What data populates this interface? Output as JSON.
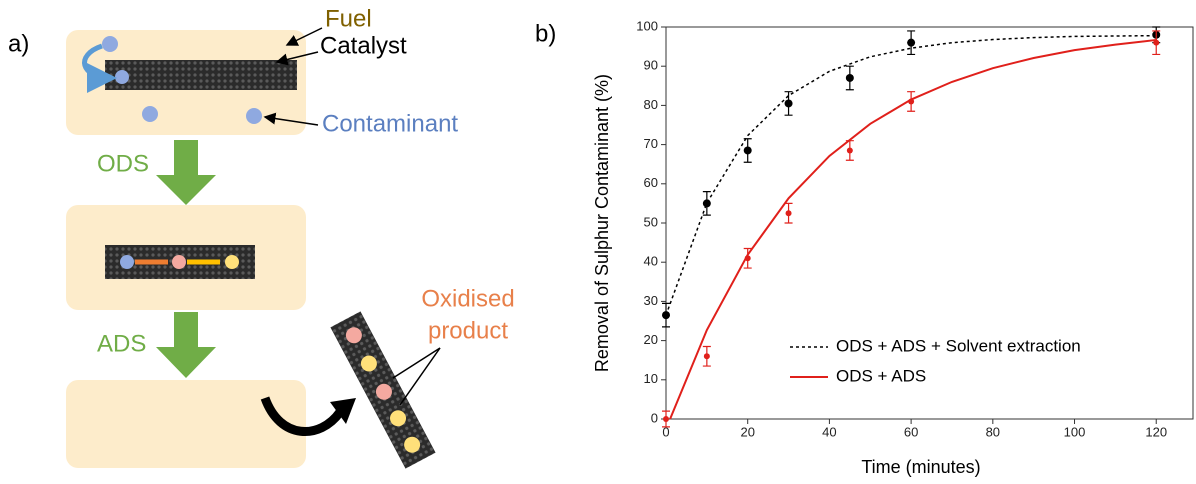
{
  "diagram": {
    "panel_label": "a)",
    "fuel": "Fuel",
    "catalyst": "Catalyst",
    "contaminant": "Contaminant",
    "step1": "ODS",
    "step2": "ADS",
    "product_line1": "Oxidised",
    "product_line2": "product"
  },
  "chart_data": {
    "type": "scatter",
    "panel_label": "b)",
    "x_label": "Time (minutes)",
    "y_label": "Removal of Sulphur Contaminant (%)",
    "xlim": [
      0,
      129
    ],
    "ylim": [
      0,
      100
    ],
    "xticks": [
      0,
      20,
      40,
      60,
      80,
      100,
      120
    ],
    "yticks": [
      0,
      10,
      20,
      30,
      40,
      50,
      60,
      70,
      80,
      90,
      100
    ],
    "legend": "lower right",
    "series": [
      {
        "name": "ODS + ADS + Solvent extraction",
        "color": "#000000",
        "line_style": "dotted",
        "x": [
          0,
          10,
          20,
          30,
          45,
          60,
          120
        ],
        "values": [
          26.5,
          55,
          68.5,
          80.5,
          87,
          96,
          98
        ],
        "errors": [
          3,
          3,
          3,
          3,
          3,
          3,
          2
        ],
        "fit_x": [
          0,
          10,
          20,
          30,
          40,
          50,
          60,
          70,
          80,
          90,
          100,
          110,
          120
        ],
        "fit_values": [
          26.5,
          55.1,
          72.3,
          82.5,
          88.7,
          92.4,
          94.6,
          96.0,
          96.8,
          97.3,
          97.6,
          97.7,
          97.8
        ]
      },
      {
        "name": "ODS + ADS",
        "color": "#e0201b",
        "line_style": "solid",
        "x": [
          0,
          10,
          20,
          30,
          45,
          60,
          120
        ],
        "values": [
          0,
          16,
          41,
          52.5,
          68.5,
          81,
          96
        ],
        "errors": [
          2,
          2.5,
          2.5,
          2.5,
          2.5,
          2.5,
          3
        ],
        "fit_x": [
          1,
          10,
          20,
          30,
          40,
          50,
          60,
          70,
          80,
          90,
          100,
          110,
          120
        ],
        "fit_values": [
          0,
          22.7,
          41.9,
          56.3,
          67.1,
          75.3,
          81.5,
          86.0,
          89.5,
          92.1,
          94.1,
          95.5,
          96.7
        ]
      }
    ]
  }
}
